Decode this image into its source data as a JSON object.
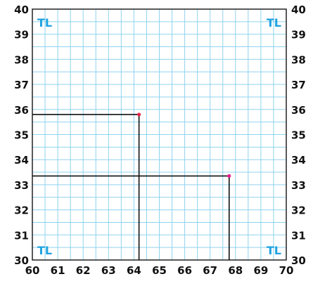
{
  "chart_data": {
    "type": "scatter",
    "xlim": [
      60,
      70
    ],
    "ylim": [
      30,
      40
    ],
    "x_ticks": [
      "60",
      "61",
      "62",
      "63",
      "64",
      "65",
      "66",
      "67",
      "68",
      "69",
      "70"
    ],
    "y_ticks": [
      "30",
      "31",
      "32",
      "33",
      "34",
      "35",
      "36",
      "37",
      "38",
      "39",
      "40"
    ],
    "grid": true,
    "corner_labels": [
      "TL",
      "TL",
      "TL",
      "TL"
    ],
    "points": [
      {
        "x": 64.2,
        "y": 35.8
      },
      {
        "x": 67.75,
        "y": 33.35
      }
    ],
    "colors": {
      "grid": "#8fd3ef",
      "axis": "#222222",
      "corner_label": "#1fa3e0",
      "guide_line": "#111111",
      "points": [
        "#e8264e",
        "#e81f8f"
      ]
    }
  }
}
